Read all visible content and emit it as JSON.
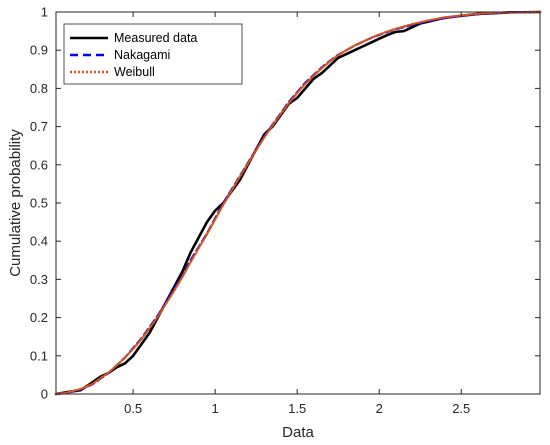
{
  "chart_data": {
    "type": "line",
    "title": "",
    "xlabel": "Data",
    "ylabel": "Cumulative probability",
    "xlim": [
      0.03,
      2.98
    ],
    "ylim": [
      0,
      1
    ],
    "xticks": [
      0.5,
      1,
      1.5,
      2,
      2.5
    ],
    "xtick_labels": [
      "0.5",
      "1",
      "1.5",
      "2",
      "2.5"
    ],
    "yticks": [
      0,
      0.1,
      0.2,
      0.3,
      0.4,
      0.5,
      0.6,
      0.7,
      0.8,
      0.9,
      1
    ],
    "ytick_labels": [
      "0",
      "0.1",
      "0.2",
      "0.3",
      "0.4",
      "0.5",
      "0.6",
      "0.7",
      "0.8",
      "0.9",
      "1"
    ],
    "grid": false,
    "legend_position": "top-left",
    "series": [
      {
        "name": "Measured data",
        "style": "solid",
        "color": "#000000",
        "x": [
          0.03,
          0.1,
          0.18,
          0.25,
          0.3,
          0.35,
          0.4,
          0.45,
          0.5,
          0.55,
          0.6,
          0.65,
          0.7,
          0.75,
          0.8,
          0.85,
          0.9,
          0.95,
          1.0,
          1.05,
          1.1,
          1.15,
          1.2,
          1.25,
          1.3,
          1.35,
          1.4,
          1.45,
          1.5,
          1.55,
          1.6,
          1.65,
          1.7,
          1.75,
          1.8,
          1.85,
          1.9,
          1.95,
          2.0,
          2.05,
          2.1,
          2.15,
          2.2,
          2.25,
          2.3,
          2.35,
          2.4,
          2.5,
          2.6,
          2.7,
          2.8,
          2.98
        ],
        "y": [
          0.0,
          0.005,
          0.01,
          0.03,
          0.045,
          0.055,
          0.07,
          0.08,
          0.1,
          0.13,
          0.16,
          0.2,
          0.24,
          0.28,
          0.32,
          0.37,
          0.41,
          0.45,
          0.48,
          0.5,
          0.53,
          0.56,
          0.6,
          0.64,
          0.68,
          0.7,
          0.73,
          0.76,
          0.775,
          0.8,
          0.825,
          0.84,
          0.86,
          0.88,
          0.89,
          0.9,
          0.91,
          0.92,
          0.93,
          0.94,
          0.948,
          0.95,
          0.96,
          0.97,
          0.975,
          0.98,
          0.985,
          0.99,
          0.995,
          0.997,
          0.999,
          1.0
        ]
      },
      {
        "name": "Nakagami",
        "style": "dashed",
        "color": "#0000ff",
        "x": [
          0.03,
          0.1,
          0.18,
          0.25,
          0.3,
          0.35,
          0.4,
          0.45,
          0.5,
          0.55,
          0.6,
          0.65,
          0.7,
          0.75,
          0.8,
          0.85,
          0.9,
          0.95,
          1.0,
          1.05,
          1.1,
          1.15,
          1.2,
          1.25,
          1.3,
          1.35,
          1.4,
          1.45,
          1.5,
          1.55,
          1.6,
          1.65,
          1.7,
          1.75,
          1.8,
          1.85,
          1.9,
          1.95,
          2.0,
          2.05,
          2.1,
          2.2,
          2.3,
          2.4,
          2.5,
          2.6,
          2.7,
          2.8,
          2.98
        ],
        "y": [
          0.0,
          0.003,
          0.012,
          0.025,
          0.04,
          0.055,
          0.075,
          0.095,
          0.12,
          0.145,
          0.175,
          0.205,
          0.24,
          0.275,
          0.31,
          0.35,
          0.385,
          0.42,
          0.46,
          0.5,
          0.535,
          0.57,
          0.605,
          0.64,
          0.675,
          0.705,
          0.735,
          0.765,
          0.79,
          0.815,
          0.835,
          0.855,
          0.872,
          0.888,
          0.9,
          0.912,
          0.922,
          0.932,
          0.94,
          0.948,
          0.955,
          0.966,
          0.976,
          0.984,
          0.99,
          0.994,
          0.997,
          0.999,
          1.0
        ]
      },
      {
        "name": "Weibull",
        "style": "dotted",
        "color": "#d95319",
        "x": [
          0.03,
          0.1,
          0.18,
          0.25,
          0.3,
          0.35,
          0.4,
          0.45,
          0.5,
          0.55,
          0.6,
          0.65,
          0.7,
          0.75,
          0.8,
          0.85,
          0.9,
          0.95,
          1.0,
          1.05,
          1.1,
          1.15,
          1.2,
          1.25,
          1.3,
          1.35,
          1.4,
          1.45,
          1.5,
          1.55,
          1.6,
          1.65,
          1.7,
          1.75,
          1.8,
          1.85,
          1.9,
          1.95,
          2.0,
          2.05,
          2.1,
          2.2,
          2.3,
          2.4,
          2.5,
          2.6,
          2.7,
          2.8,
          2.98
        ],
        "y": [
          0.0,
          0.004,
          0.013,
          0.026,
          0.041,
          0.056,
          0.075,
          0.095,
          0.118,
          0.143,
          0.172,
          0.202,
          0.236,
          0.27,
          0.306,
          0.345,
          0.382,
          0.418,
          0.457,
          0.496,
          0.532,
          0.568,
          0.603,
          0.638,
          0.672,
          0.703,
          0.733,
          0.762,
          0.788,
          0.812,
          0.833,
          0.853,
          0.871,
          0.887,
          0.9,
          0.912,
          0.922,
          0.932,
          0.941,
          0.949,
          0.956,
          0.968,
          0.978,
          0.986,
          0.991,
          0.995,
          0.998,
          0.999,
          1.0
        ]
      }
    ]
  }
}
